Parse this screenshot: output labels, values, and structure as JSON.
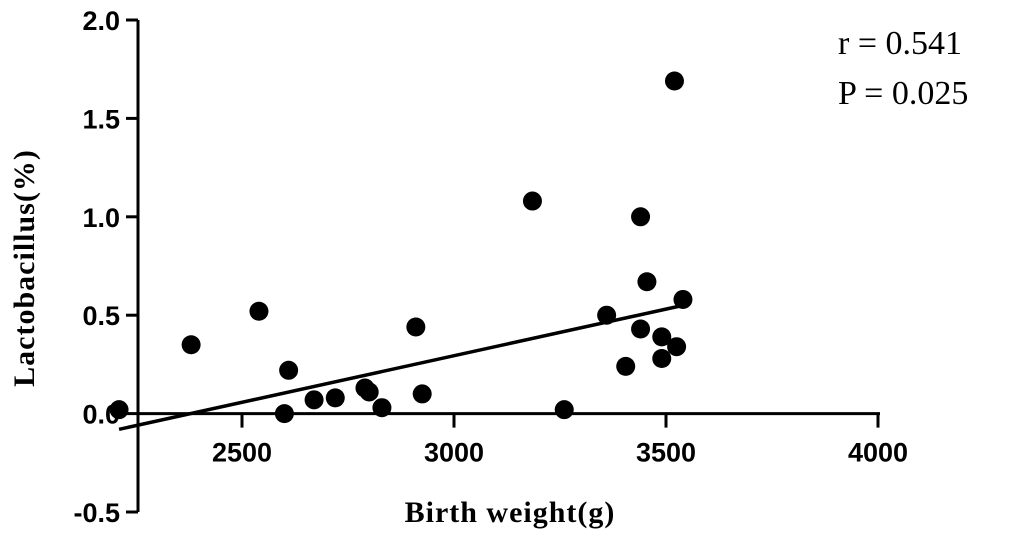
{
  "chart_data": {
    "type": "scatter",
    "title": "",
    "xlabel": "Birth weight(g)",
    "ylabel": "Lactobacillus(%)",
    "xlim": [
      2000,
      4000
    ],
    "ylim": [
      -0.5,
      2.0
    ],
    "xticks": [
      2500,
      3000,
      3500,
      4000
    ],
    "xtick_labels": [
      "2500",
      "3000",
      "3500",
      "4000"
    ],
    "yticks": [
      -0.5,
      0.0,
      0.5,
      1.0,
      1.5,
      2.0
    ],
    "ytick_labels": [
      "-0.5",
      "0.0",
      "0.5",
      "1.0",
      "1.5",
      "2.0"
    ],
    "grid": false,
    "points": [
      {
        "x": 2210,
        "y": 0.02
      },
      {
        "x": 2380,
        "y": 0.35
      },
      {
        "x": 2540,
        "y": 0.52
      },
      {
        "x": 2600,
        "y": 0.0
      },
      {
        "x": 2610,
        "y": 0.22
      },
      {
        "x": 2670,
        "y": 0.07
      },
      {
        "x": 2720,
        "y": 0.08
      },
      {
        "x": 2790,
        "y": 0.13
      },
      {
        "x": 2800,
        "y": 0.11
      },
      {
        "x": 2830,
        "y": 0.03
      },
      {
        "x": 2910,
        "y": 0.44
      },
      {
        "x": 2925,
        "y": 0.1
      },
      {
        "x": 3185,
        "y": 1.08
      },
      {
        "x": 3260,
        "y": 0.02
      },
      {
        "x": 3360,
        "y": 0.5
      },
      {
        "x": 3405,
        "y": 0.24
      },
      {
        "x": 3440,
        "y": 1.0
      },
      {
        "x": 3440,
        "y": 0.43
      },
      {
        "x": 3455,
        "y": 0.67
      },
      {
        "x": 3490,
        "y": 0.39
      },
      {
        "x": 3490,
        "y": 0.28
      },
      {
        "x": 3520,
        "y": 1.69
      },
      {
        "x": 3525,
        "y": 0.34
      },
      {
        "x": 3540,
        "y": 0.58
      }
    ],
    "regression_line": {
      "x": [
        2210,
        3540
      ],
      "y": [
        -0.08,
        0.55
      ]
    },
    "annotations": [
      "r = 0.541",
      "P = 0.025"
    ]
  }
}
